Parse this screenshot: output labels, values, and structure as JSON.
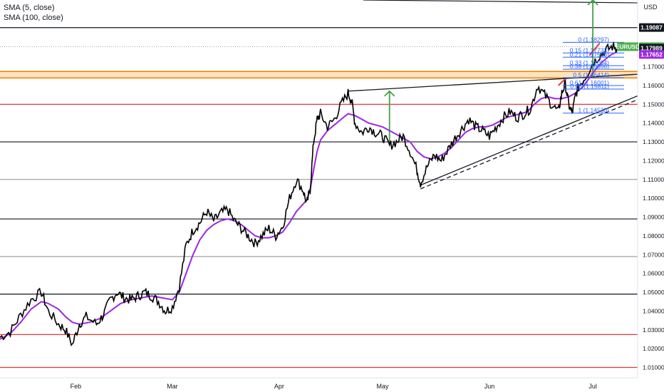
{
  "legend": {
    "line1": "SMA (5, close)",
    "line2": "SMA (100, close)"
  },
  "colors": {
    "price": "#000000",
    "sma": "#9c27e0",
    "fib": "#2962ff",
    "red_level": "#e53935",
    "black_level": "#131722",
    "dotted_level": "#888888",
    "green_arrow": "#43a047",
    "orange_zone": "#f5b041",
    "symbol_badge": "#4caf50",
    "close_badge": "#131722",
    "sma_badge": "#9c27e0"
  },
  "chart_data": {
    "type": "line",
    "symbol": "EURUSD",
    "currency": "USD",
    "ylim": [
      1.0045,
      1.2055
    ],
    "y_ticks": [
      "1.01000",
      "1.02000",
      "1.03000",
      "1.04000",
      "1.05000",
      "1.06000",
      "1.07000",
      "1.08000",
      "1.09000",
      "1.10000",
      "1.11000",
      "1.12000",
      "1.13000",
      "1.14000",
      "1.15000",
      "1.16000",
      "1.17000"
    ],
    "x_ticks": [
      {
        "label": "Feb",
        "x": 22
      },
      {
        "label": "Mar",
        "x": 50
      },
      {
        "label": "Apr",
        "x": 81
      },
      {
        "label": "May",
        "x": 111
      },
      {
        "label": "Jun",
        "x": 142
      },
      {
        "label": "Jul",
        "x": 172
      }
    ],
    "xlim": [
      0,
      185
    ],
    "price_series": {
      "name": "EURUSD",
      "points": [
        [
          0,
          1.026
        ],
        [
          3,
          1.029
        ],
        [
          6,
          1.038
        ],
        [
          9,
          1.046
        ],
        [
          12,
          1.05
        ],
        [
          14,
          1.04
        ],
        [
          17,
          1.033
        ],
        [
          19,
          1.03
        ],
        [
          21,
          1.022
        ],
        [
          23,
          1.033
        ],
        [
          25,
          1.037
        ],
        [
          28,
          1.033
        ],
        [
          30,
          1.038
        ],
        [
          32,
          1.046
        ],
        [
          34,
          1.05
        ],
        [
          36,
          1.047
        ],
        [
          38,
          1.046
        ],
        [
          40,
          1.048
        ],
        [
          42,
          1.05
        ],
        [
          44,
          1.048
        ],
        [
          46,
          1.045
        ],
        [
          48,
          1.04
        ],
        [
          50,
          1.042
        ],
        [
          52,
          1.053
        ],
        [
          54,
          1.075
        ],
        [
          56,
          1.083
        ],
        [
          58,
          1.087
        ],
        [
          60,
          1.093
        ],
        [
          62,
          1.088
        ],
        [
          64,
          1.092
        ],
        [
          66,
          1.094
        ],
        [
          68,
          1.088
        ],
        [
          70,
          1.084
        ],
        [
          72,
          1.08
        ],
        [
          74,
          1.076
        ],
        [
          76,
          1.08
        ],
        [
          78,
          1.084
        ],
        [
          80,
          1.08
        ],
        [
          82,
          1.085
        ],
        [
          84,
          1.1
        ],
        [
          86,
          1.11
        ],
        [
          88,
          1.104
        ],
        [
          89,
          1.097
        ],
        [
          90,
          1.105
        ],
        [
          91,
          1.13
        ],
        [
          92,
          1.142
        ],
        [
          93,
          1.145
        ],
        [
          95,
          1.138
        ],
        [
          97,
          1.142
        ],
        [
          99,
          1.15
        ],
        [
          101,
          1.156
        ],
        [
          102,
          1.152
        ],
        [
          103,
          1.14
        ],
        [
          105,
          1.135
        ],
        [
          107,
          1.138
        ],
        [
          109,
          1.135
        ],
        [
          111,
          1.133
        ],
        [
          113,
          1.128
        ],
        [
          115,
          1.13
        ],
        [
          117,
          1.133
        ],
        [
          119,
          1.125
        ],
        [
          121,
          1.115
        ],
        [
          122,
          1.108
        ],
        [
          124,
          1.117
        ],
        [
          126,
          1.123
        ],
        [
          128,
          1.12
        ],
        [
          130,
          1.126
        ],
        [
          132,
          1.132
        ],
        [
          134,
          1.137
        ],
        [
          136,
          1.142
        ],
        [
          138,
          1.138
        ],
        [
          140,
          1.136
        ],
        [
          142,
          1.133
        ],
        [
          144,
          1.138
        ],
        [
          146,
          1.143
        ],
        [
          148,
          1.146
        ],
        [
          150,
          1.143
        ],
        [
          152,
          1.145
        ],
        [
          154,
          1.148
        ],
        [
          156,
          1.16
        ],
        [
          158,
          1.155
        ],
        [
          160,
          1.15
        ],
        [
          162,
          1.146
        ],
        [
          163,
          1.156
        ],
        [
          164,
          1.161
        ],
        [
          165,
          1.15
        ],
        [
          166,
          1.145
        ],
        [
          167,
          1.155
        ],
        [
          168,
          1.16
        ],
        [
          170,
          1.165
        ],
        [
          172,
          1.172
        ],
        [
          174,
          1.176
        ],
        [
          176,
          1.179
        ],
        [
          178,
          1.181
        ],
        [
          179,
          1.18
        ]
      ]
    },
    "sma_series": {
      "name": "SMA",
      "points": [
        [
          0,
          1.025
        ],
        [
          3,
          1.028
        ],
        [
          6,
          1.034
        ],
        [
          9,
          1.041
        ],
        [
          12,
          1.045
        ],
        [
          14,
          1.044
        ],
        [
          17,
          1.041
        ],
        [
          19,
          1.037
        ],
        [
          21,
          1.034
        ],
        [
          23,
          1.033
        ],
        [
          26,
          1.034
        ],
        [
          29,
          1.036
        ],
        [
          32,
          1.04
        ],
        [
          35,
          1.044
        ],
        [
          38,
          1.046
        ],
        [
          41,
          1.047
        ],
        [
          44,
          1.048
        ],
        [
          47,
          1.047
        ],
        [
          50,
          1.046
        ],
        [
          52,
          1.05
        ],
        [
          54,
          1.06
        ],
        [
          56,
          1.07
        ],
        [
          58,
          1.078
        ],
        [
          60,
          1.083
        ],
        [
          62,
          1.086
        ],
        [
          64,
          1.088
        ],
        [
          66,
          1.089
        ],
        [
          68,
          1.088
        ],
        [
          70,
          1.086
        ],
        [
          72,
          1.083
        ],
        [
          74,
          1.08
        ],
        [
          76,
          1.079
        ],
        [
          78,
          1.079
        ],
        [
          80,
          1.08
        ],
        [
          82,
          1.082
        ],
        [
          84,
          1.087
        ],
        [
          86,
          1.093
        ],
        [
          88,
          1.097
        ],
        [
          89,
          1.099
        ],
        [
          90,
          1.105
        ],
        [
          91,
          1.115
        ],
        [
          92,
          1.125
        ],
        [
          93,
          1.131
        ],
        [
          95,
          1.136
        ],
        [
          97,
          1.139
        ],
        [
          99,
          1.142
        ],
        [
          101,
          1.145
        ],
        [
          103,
          1.144
        ],
        [
          105,
          1.142
        ],
        [
          107,
          1.14
        ],
        [
          109,
          1.139
        ],
        [
          111,
          1.138
        ],
        [
          113,
          1.136
        ],
        [
          115,
          1.134
        ],
        [
          117,
          1.132
        ],
        [
          119,
          1.13
        ],
        [
          121,
          1.125
        ],
        [
          123,
          1.122
        ],
        [
          125,
          1.121
        ],
        [
          127,
          1.122
        ],
        [
          129,
          1.124
        ],
        [
          131,
          1.127
        ],
        [
          133,
          1.131
        ],
        [
          135,
          1.135
        ],
        [
          137,
          1.137
        ],
        [
          139,
          1.138
        ],
        [
          141,
          1.138
        ],
        [
          143,
          1.139
        ],
        [
          145,
          1.141
        ],
        [
          147,
          1.143
        ],
        [
          149,
          1.144
        ],
        [
          151,
          1.145
        ],
        [
          153,
          1.146
        ],
        [
          155,
          1.15
        ],
        [
          157,
          1.153
        ],
        [
          159,
          1.154
        ],
        [
          161,
          1.153
        ],
        [
          163,
          1.153
        ],
        [
          165,
          1.154
        ],
        [
          167,
          1.156
        ],
        [
          169,
          1.159
        ],
        [
          171,
          1.164
        ],
        [
          173,
          1.169
        ],
        [
          175,
          1.173
        ],
        [
          177,
          1.176
        ],
        [
          179,
          1.178
        ]
      ]
    },
    "horizontal_levels": [
      {
        "y": 1.1908,
        "style": "black"
      },
      {
        "y": 1.15,
        "style": "red"
      },
      {
        "y": 1.13,
        "style": "black"
      },
      {
        "y": 1.11,
        "style": "dim"
      },
      {
        "y": 1.089,
        "style": "black"
      },
      {
        "y": 1.069,
        "style": "dim"
      },
      {
        "y": 1.049,
        "style": "black"
      },
      {
        "y": 1.0275,
        "style": "red"
      },
      {
        "y": 1.01,
        "style": "red"
      }
    ],
    "resistance_zone": [
      1.164,
      1.1675
    ],
    "dotted_level": 1.1806,
    "fib_levels": [
      {
        "label": "0 (1.18297)",
        "y": 1.18297
      },
      {
        "label": "0.15 (1.17733)",
        "y": 1.17733
      },
      {
        "label": "0.21 (1.17506)",
        "y": 1.17506
      },
      {
        "label": "0.33 (1.17054)",
        "y": 1.17054
      },
      {
        "label": "0.38 (1.16866)",
        "y": 1.16866
      },
      {
        "label": "0.5 (1.16414)",
        "y": 1.16414
      },
      {
        "label": "0.61 (1.16001)",
        "y": 1.16001
      },
      {
        "label": "0.66 (1.15811)",
        "y": 1.15811
      },
      {
        "label": "1 (1.14530)",
        "y": 1.1453
      }
    ],
    "trend_lines": [
      {
        "from": [
          101,
          1.157
        ],
        "to": [
          185,
          1.166
        ],
        "dashed": false
      },
      {
        "from": [
          122,
          1.107
        ],
        "to": [
          185,
          1.1545
        ],
        "dashed": false
      },
      {
        "from": [
          122,
          1.105
        ],
        "to": [
          185,
          1.1525
        ],
        "dashed": true
      }
    ],
    "axis_badges": [
      {
        "label": "1.19087",
        "y": 1.19087,
        "kind": "close"
      },
      {
        "label": "EURUSD",
        "y": 1.18066,
        "kind": "symbol"
      },
      {
        "label": "1.18066",
        "y": 1.18066,
        "kind": "symbol"
      },
      {
        "label": "1.17989",
        "y": 1.17989,
        "kind": "close"
      },
      {
        "label": "1.17652",
        "y": 1.17652,
        "kind": "sma"
      }
    ]
  }
}
